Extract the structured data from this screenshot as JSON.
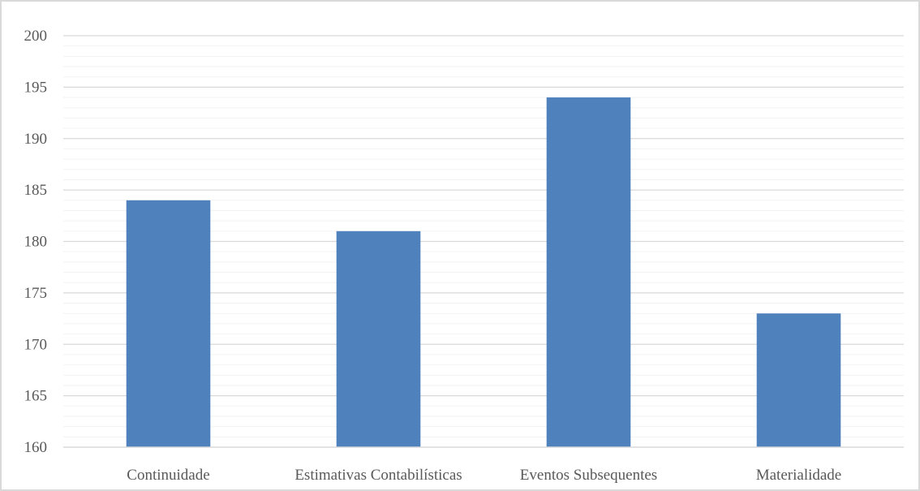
{
  "chart_data": {
    "type": "bar",
    "categories": [
      "Continuidade",
      "Estimativas Contabilísticas",
      "Eventos Subsequentes",
      "Materialidade"
    ],
    "values": [
      184,
      181,
      194,
      173
    ],
    "title": "",
    "xlabel": "",
    "ylabel": "",
    "ylim": [
      160,
      200
    ],
    "yticks": [
      "160",
      "165",
      "170",
      "175",
      "180",
      "185",
      "190",
      "195",
      "200"
    ],
    "major_step": 5,
    "minor_step": 1,
    "grid": true,
    "legend": "none",
    "colors": {
      "bar": "#4f81bd",
      "major_grid": "#d9d9d9",
      "minor_grid": "#f2f2f2",
      "axis": "#d9d9d9",
      "text": "#595959"
    }
  }
}
